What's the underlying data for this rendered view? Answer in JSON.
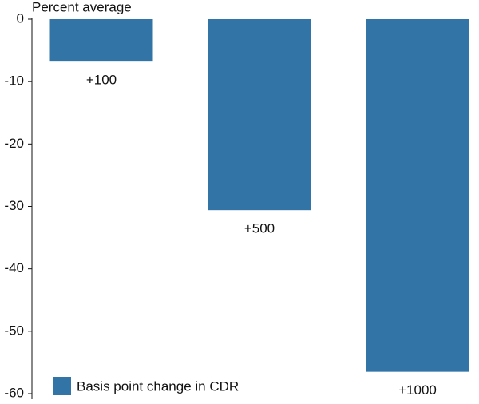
{
  "chart_data": {
    "type": "bar",
    "y_axis_label": "Percent average",
    "categories": [
      "+100",
      "+500",
      "+1000"
    ],
    "series": [
      {
        "name": "Basis point change in CDR",
        "color": "#3174a5",
        "values": [
          -6.8,
          -30.6,
          -56.5
        ]
      }
    ],
    "ylim": [
      -60,
      0
    ],
    "yticks": [
      0,
      -10,
      -20,
      -30,
      -40,
      -50,
      -60
    ]
  }
}
